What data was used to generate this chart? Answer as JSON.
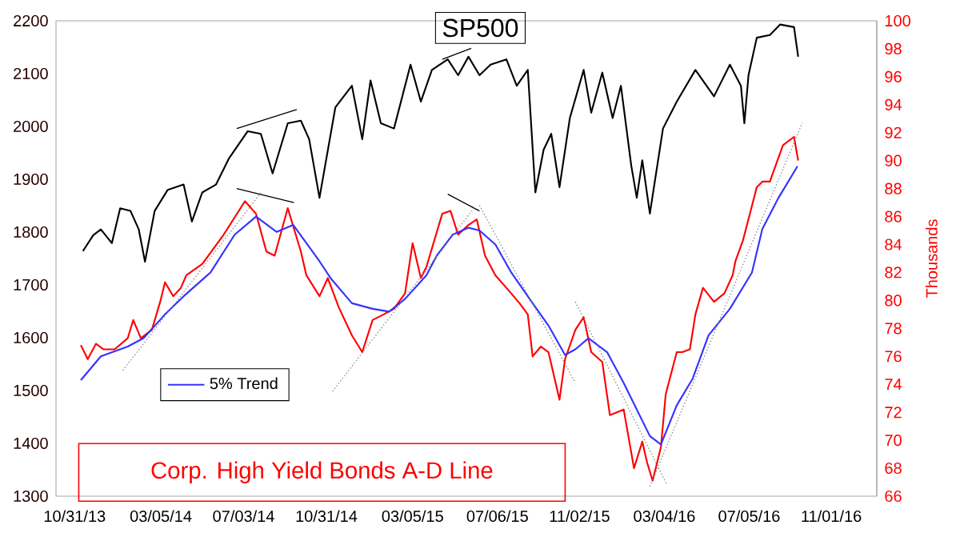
{
  "chart_data": {
    "type": "line",
    "xlim": [
      "2013-10-04",
      "2017-01-06"
    ],
    "xticks": [
      {
        "value": "2013-10-31",
        "label": "10/31/13"
      },
      {
        "value": "2014-03-05",
        "label": "03/05/14"
      },
      {
        "value": "2014-07-03",
        "label": "07/03/14"
      },
      {
        "value": "2014-10-31",
        "label": "10/31/14"
      },
      {
        "value": "2015-03-05",
        "label": "03/05/15"
      },
      {
        "value": "2015-07-06",
        "label": "07/06/15"
      },
      {
        "value": "2015-11-02",
        "label": "11/02/15"
      },
      {
        "value": "2016-03-04",
        "label": "03/04/16"
      },
      {
        "value": "2016-07-05",
        "label": "07/05/16"
      },
      {
        "value": "2016-11-01",
        "label": "11/01/16"
      }
    ],
    "ylim": [
      1300,
      2200
    ],
    "yticks": [
      1300,
      1400,
      1500,
      1600,
      1700,
      1800,
      1900,
      2000,
      2100,
      2200
    ],
    "y2lim": [
      66,
      100
    ],
    "y2ticks": [
      66,
      68,
      70,
      72,
      74,
      76,
      78,
      80,
      82,
      84,
      86,
      88,
      90,
      92,
      94,
      96,
      98,
      100
    ],
    "y2label": "Thousands",
    "legend": "bottom left",
    "series": [
      {
        "name": "SP500",
        "color": "#000000",
        "x": [
          "2013-11-12",
          "2013-11-27",
          "2013-12-08",
          "2013-12-24",
          "2014-01-05",
          "2014-01-20",
          "2014-02-01",
          "2014-02-10",
          "2014-02-24",
          "2014-03-15",
          "2014-04-07",
          "2014-04-19",
          "2014-05-04",
          "2014-05-24",
          "2014-06-12",
          "2014-07-09",
          "2014-07-28",
          "2014-08-14",
          "2014-09-05",
          "2014-09-24",
          "2014-10-06",
          "2014-10-21",
          "2014-11-13",
          "2014-12-07",
          "2014-12-22",
          "2015-01-03",
          "2015-01-18",
          "2015-02-06",
          "2015-03-02",
          "2015-03-17",
          "2015-04-02",
          "2015-04-25",
          "2015-05-10",
          "2015-05-25",
          "2015-06-10",
          "2015-06-26",
          "2015-07-19",
          "2015-08-03",
          "2015-08-19",
          "2015-08-30",
          "2015-09-11",
          "2015-09-22",
          "2015-10-04",
          "2015-10-19",
          "2015-11-08",
          "2015-11-19",
          "2015-12-05",
          "2015-12-20",
          "2016-01-01",
          "2016-01-16",
          "2016-01-24",
          "2016-02-01",
          "2016-02-12",
          "2016-03-02",
          "2016-03-22",
          "2016-04-18",
          "2016-05-15",
          "2016-06-07",
          "2016-06-23",
          "2016-06-28",
          "2016-07-04",
          "2016-07-16",
          "2016-08-04",
          "2016-08-19",
          "2016-09-08",
          "2016-09-14"
        ],
        "values": [
          1764,
          1794,
          1805,
          1779,
          1845,
          1840,
          1805,
          1744,
          1840,
          1880,
          1890,
          1820,
          1875,
          1890,
          1940,
          1991,
          1986,
          1911,
          2006,
          2011,
          1976,
          1865,
          2036,
          2077,
          1976,
          2087,
          2006,
          1996,
          2117,
          2047,
          2107,
          2127,
          2097,
          2132,
          2097,
          2117,
          2127,
          2077,
          2107,
          1875,
          1956,
          1986,
          1885,
          2016,
          2107,
          2026,
          2102,
          2016,
          2077,
          1926,
          1865,
          1936,
          1835,
          1996,
          2047,
          2107,
          2057,
          2117,
          2077,
          2006,
          2097,
          2168,
          2173,
          2193,
          2188,
          2132
        ]
      },
      {
        "name": "Corp. High Yield Bonds A-D Line",
        "color": "#ff0000",
        "axis": "y2",
        "x": [
          "2013-11-09",
          "2013-11-19",
          "2013-12-01",
          "2013-12-12",
          "2013-12-28",
          "2014-01-16",
          "2014-01-24",
          "2014-02-04",
          "2014-02-20",
          "2014-03-04",
          "2014-03-11",
          "2014-03-23",
          "2014-04-03",
          "2014-04-11",
          "2014-05-04",
          "2014-06-04",
          "2014-07-05",
          "2014-07-21",
          "2014-08-05",
          "2014-08-17",
          "2014-09-05",
          "2014-09-24",
          "2014-10-02",
          "2014-10-21",
          "2014-11-02",
          "2014-11-18",
          "2014-12-07",
          "2014-12-22",
          "2015-01-06",
          "2015-01-22",
          "2015-02-06",
          "2015-02-22",
          "2015-03-05",
          "2015-03-17",
          "2015-03-25",
          "2015-04-17",
          "2015-04-29",
          "2015-05-10",
          "2015-05-25",
          "2015-06-06",
          "2015-06-18",
          "2015-07-03",
          "2015-07-26",
          "2015-08-07",
          "2015-08-19",
          "2015-08-26",
          "2015-09-07",
          "2015-09-18",
          "2015-10-04",
          "2015-10-12",
          "2015-10-27",
          "2015-11-08",
          "2015-11-19",
          "2015-12-05",
          "2015-12-16",
          "2016-01-05",
          "2016-01-20",
          "2016-02-01",
          "2016-02-08",
          "2016-02-16",
          "2016-02-28",
          "2016-03-06",
          "2016-03-22",
          "2016-03-30",
          "2016-04-10",
          "2016-04-18",
          "2016-04-29",
          "2016-05-15",
          "2016-05-30",
          "2016-06-11",
          "2016-06-15",
          "2016-06-26",
          "2016-07-16",
          "2016-07-24",
          "2016-08-04",
          "2016-08-12",
          "2016-08-23",
          "2016-09-08",
          "2016-09-14"
        ],
        "values": [
          76.8,
          75.8,
          76.9,
          76.5,
          76.5,
          77.3,
          78.6,
          77.3,
          77.9,
          79.9,
          81.3,
          80.3,
          80.9,
          81.8,
          82.6,
          84.7,
          87.1,
          86.2,
          83.5,
          83.2,
          86.6,
          83.5,
          81.8,
          80.3,
          81.6,
          79.5,
          77.5,
          76.3,
          78.6,
          79.0,
          79.4,
          80.5,
          84.1,
          81.6,
          82.4,
          86.2,
          86.4,
          84.7,
          85.4,
          85.8,
          83.2,
          81.8,
          80.5,
          79.8,
          79.0,
          76.0,
          76.7,
          76.3,
          72.9,
          75.8,
          77.9,
          78.8,
          76.3,
          75.6,
          71.8,
          72.2,
          68.0,
          69.9,
          68.4,
          67.1,
          69.5,
          73.3,
          76.3,
          76.3,
          76.5,
          79.0,
          80.9,
          79.9,
          80.5,
          81.8,
          82.8,
          84.3,
          88.1,
          88.5,
          88.5,
          89.6,
          91.1,
          91.7,
          90.0
        ]
      },
      {
        "name": "5% Trend",
        "color": "#3333ff",
        "axis": "y2",
        "x": [
          "2013-11-09",
          "2013-12-08",
          "2014-01-16",
          "2014-02-08",
          "2014-03-11",
          "2014-04-07",
          "2014-05-16",
          "2014-06-20",
          "2014-07-21",
          "2014-08-20",
          "2014-09-13",
          "2014-10-21",
          "2014-11-06",
          "2014-12-07",
          "2015-01-06",
          "2015-01-30",
          "2015-02-22",
          "2015-03-25",
          "2015-04-09",
          "2015-05-02",
          "2015-05-25",
          "2015-06-10",
          "2015-07-03",
          "2015-07-26",
          "2015-08-26",
          "2015-09-18",
          "2015-10-12",
          "2015-10-27",
          "2015-11-15",
          "2015-12-12",
          "2016-01-05",
          "2016-02-12",
          "2016-02-28",
          "2016-03-22",
          "2016-04-14",
          "2016-05-07",
          "2016-06-07",
          "2016-07-09",
          "2016-07-24",
          "2016-08-16",
          "2016-09-13"
        ],
        "values": [
          74.3,
          76.0,
          76.7,
          77.3,
          79.0,
          80.3,
          82.0,
          84.7,
          86.0,
          84.9,
          85.4,
          82.8,
          81.6,
          79.8,
          79.4,
          79.2,
          80.1,
          81.8,
          83.2,
          84.7,
          85.2,
          85.0,
          84.0,
          82.0,
          79.8,
          78.2,
          76.1,
          76.5,
          77.3,
          76.3,
          74.1,
          70.3,
          69.7,
          72.5,
          74.4,
          77.5,
          79.4,
          82.0,
          85.1,
          87.3,
          89.6
        ]
      },
      {
        "type": "line",
        "color": "#000000",
        "line_style": "solid",
        "x": [
          "2014-06-23",
          "2014-09-18"
        ],
        "values": [
          1996,
          2032
        ]
      },
      {
        "type": "line",
        "color": "#000000",
        "line_style": "solid",
        "x": [
          "2015-04-17",
          "2015-05-29"
        ],
        "values": [
          2127,
          2148
        ]
      },
      {
        "type": "line",
        "color": "#000000",
        "line_style": "solid",
        "axis": "y2",
        "x": [
          "2014-06-23",
          "2014-09-14"
        ],
        "values": [
          88.0,
          87.0
        ]
      },
      {
        "type": "line",
        "color": "#000000",
        "line_style": "solid",
        "axis": "y2",
        "x": [
          "2015-04-25",
          "2015-06-10"
        ],
        "values": [
          87.6,
          86.4
        ]
      },
      {
        "type": "line",
        "color": "#808080",
        "line_style": "dotted",
        "axis": "y2",
        "x": [
          "2014-01-09",
          "2014-07-28"
        ],
        "values": [
          75.0,
          87.7
        ]
      },
      {
        "type": "line",
        "color": "#808080",
        "line_style": "dotted",
        "axis": "y2",
        "x": [
          "2014-11-09",
          "2015-06-02"
        ],
        "values": [
          73.5,
          86.6
        ]
      },
      {
        "type": "line",
        "color": "#808080",
        "line_style": "dotted",
        "axis": "y2",
        "x": [
          "2015-06-10",
          "2015-10-27"
        ],
        "values": [
          86.8,
          74.1
        ]
      },
      {
        "type": "line",
        "color": "#808080",
        "line_style": "dotted",
        "axis": "y2",
        "x": [
          "2015-10-27",
          "2016-03-07"
        ],
        "values": [
          79.9,
          66.9
        ]
      },
      {
        "type": "line",
        "color": "#808080",
        "line_style": "dotted",
        "axis": "y2",
        "x": [
          "2016-02-12",
          "2016-09-20"
        ],
        "values": [
          66.7,
          92.7
        ]
      }
    ]
  }
}
